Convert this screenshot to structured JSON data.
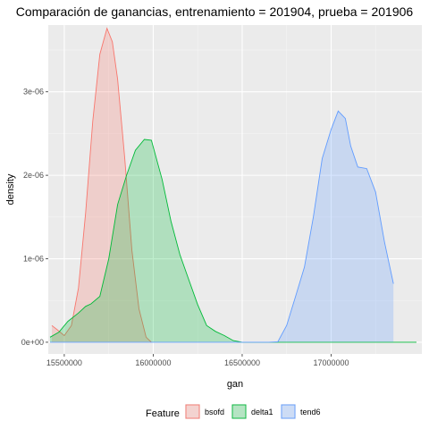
{
  "chart_data": {
    "type": "area",
    "title": "Comparación de ganancias, entrenamiento = 201904, prueba = 201906",
    "xlabel": "gan",
    "ylabel": "density",
    "xlim": [
      15410000,
      17510000
    ],
    "ylim": [
      -1.4e-07,
      3.8e-06
    ],
    "x_ticks": [
      15500000,
      16000000,
      16500000,
      17000000
    ],
    "x_tick_labels": [
      "15500000",
      "16000000",
      "16500000",
      "17000000"
    ],
    "y_ticks": [
      0,
      1e-06,
      2e-06,
      3e-06
    ],
    "y_tick_labels": [
      "0e+00",
      "1e-06",
      "2e-06",
      "3e-06"
    ],
    "grid": true,
    "legend": {
      "title": "Feature",
      "position": "bottom"
    },
    "series": [
      {
        "name": "bsofd",
        "color": "#F8766D",
        "points": [
          [
            15430000,
            2e-07
          ],
          [
            15460000,
            1.5e-07
          ],
          [
            15500000,
            8e-08
          ],
          [
            15540000,
            2e-07
          ],
          [
            15580000,
            6.5e-07
          ],
          [
            15620000,
            1.55e-06
          ],
          [
            15660000,
            2.65e-06
          ],
          [
            15700000,
            3.45e-06
          ],
          [
            15740000,
            3.76e-06
          ],
          [
            15770000,
            3.6e-06
          ],
          [
            15800000,
            3.15e-06
          ],
          [
            15840000,
            2.2e-06
          ],
          [
            15880000,
            1.1e-06
          ],
          [
            15920000,
            4e-07
          ],
          [
            15960000,
            6e-08
          ],
          [
            15990000,
            0.0
          ]
        ]
      },
      {
        "name": "delta1",
        "color": "#00BA38",
        "points": [
          [
            15420000,
            6e-08
          ],
          [
            15470000,
            1.2e-07
          ],
          [
            15520000,
            2.5e-07
          ],
          [
            15580000,
            3.5e-07
          ],
          [
            15620000,
            4.3e-07
          ],
          [
            15650000,
            4.6e-07
          ],
          [
            15700000,
            5.5e-07
          ],
          [
            15750000,
            1e-06
          ],
          [
            15800000,
            1.65e-06
          ],
          [
            15850000,
            2e-06
          ],
          [
            15900000,
            2.3e-06
          ],
          [
            15950000,
            2.43e-06
          ],
          [
            15990000,
            2.42e-06
          ],
          [
            16050000,
            1.95e-06
          ],
          [
            16100000,
            1.45e-06
          ],
          [
            16150000,
            1.05e-06
          ],
          [
            16200000,
            7.5e-07
          ],
          [
            16250000,
            4.5e-07
          ],
          [
            16300000,
            2e-07
          ],
          [
            16350000,
            1.3e-07
          ],
          [
            16400000,
            8e-08
          ],
          [
            16450000,
            2e-08
          ],
          [
            16500000,
            0.0
          ],
          [
            17480000,
            0.0
          ]
        ]
      },
      {
        "name": "tend6",
        "color": "#619CFF",
        "points": [
          [
            15420000,
            0.0
          ],
          [
            16650000,
            0.0
          ],
          [
            16700000,
            5e-09
          ],
          [
            16750000,
            2e-07
          ],
          [
            16800000,
            5.5e-07
          ],
          [
            16850000,
            9e-07
          ],
          [
            16900000,
            1.5e-06
          ],
          [
            16950000,
            2.2e-06
          ],
          [
            17000000,
            2.55e-06
          ],
          [
            17040000,
            2.77e-06
          ],
          [
            17080000,
            2.68e-06
          ],
          [
            17110000,
            2.35e-06
          ],
          [
            17150000,
            2.1e-06
          ],
          [
            17200000,
            2.08e-06
          ],
          [
            17250000,
            1.8e-06
          ],
          [
            17300000,
            1.2e-06
          ],
          [
            17350000,
            7e-07
          ]
        ]
      }
    ]
  }
}
